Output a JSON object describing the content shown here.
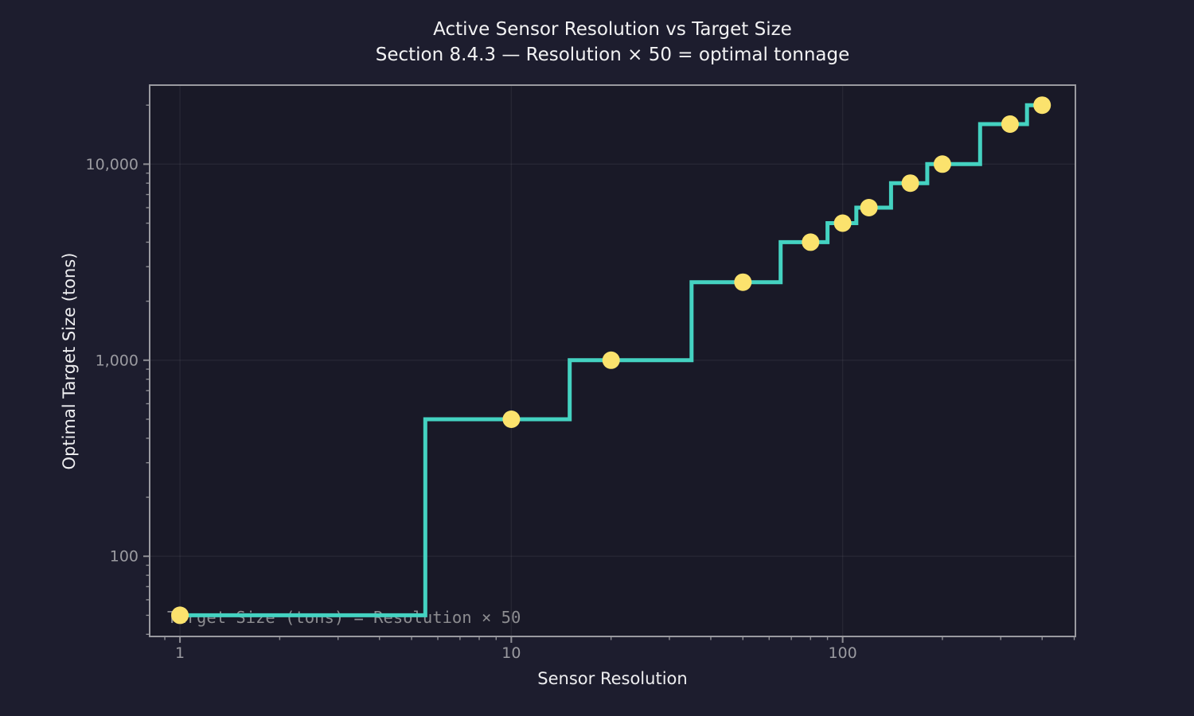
{
  "chart_data": {
    "type": "line",
    "drawstyle": "steps-mid",
    "xscale": "log",
    "yscale": "log",
    "title": "Active Sensor Resolution vs Target Size",
    "subtitle": "Section 8.4.3 — Resolution × 50 = optimal tonnage",
    "xlabel": "Sensor Resolution",
    "ylabel": "Optimal Target Size (tons)",
    "annotation": "Target Size (tons) = Resolution × 50",
    "x": [
      1,
      10,
      20,
      50,
      80,
      100,
      120,
      160,
      200,
      320,
      400
    ],
    "y": [
      50,
      500,
      1000,
      2500,
      4000,
      5000,
      6000,
      8000,
      10000,
      16000,
      20000
    ],
    "xlim": [
      0.81,
      504
    ],
    "ylim": [
      39,
      25300
    ],
    "x_major_ticks": [
      1,
      10,
      100
    ],
    "x_tick_labels": [
      "1",
      "10",
      "100"
    ],
    "y_major_ticks": [
      100,
      1000,
      10000
    ],
    "y_tick_labels": [
      "100",
      "1,000",
      "10,000"
    ],
    "grid": true,
    "legend": null,
    "colors": {
      "figure_background": "#1d1d2e",
      "axes_background": "#191927",
      "line": "#44d2c1",
      "marker": "#fbe26d",
      "spine": "#9a9aa0",
      "tick": "#8e8e94",
      "tick_label": "#9a9aa0",
      "grid": "rgba(255,255,255,0.06)",
      "title": "#f2f2f3",
      "axis_label": "#eeeef0",
      "annotation": "#8c8c90"
    }
  }
}
